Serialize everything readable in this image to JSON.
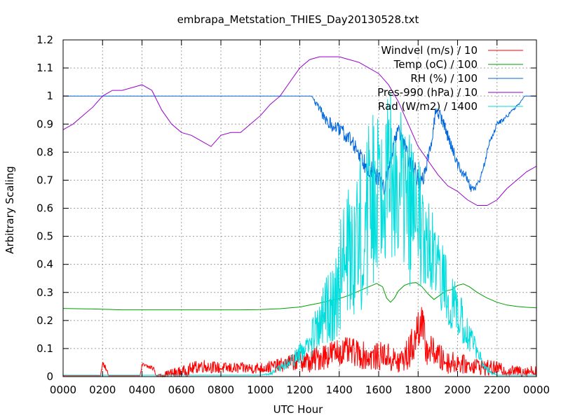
{
  "chart_data": {
    "type": "line",
    "title": "embrapa_Metstation_THIES_Day20130528.txt",
    "xlabel": "UTC Hour",
    "ylabel": "Arbitrary Scaling",
    "xlim": [
      0,
      24
    ],
    "ylim": [
      0,
      1.2
    ],
    "x_tick_values": [
      0,
      2,
      4,
      6,
      8,
      10,
      12,
      14,
      16,
      18,
      20,
      22,
      24
    ],
    "x_tick_labels": [
      "0000",
      "0200",
      "0400",
      "0600",
      "0800",
      "1000",
      "1200",
      "1400",
      "1600",
      "1800",
      "2000",
      "2200",
      "0000"
    ],
    "y_tick_values": [
      0,
      0.1,
      0.2,
      0.3,
      0.4,
      0.5,
      0.6,
      0.7,
      0.8,
      0.9,
      1,
      1.1,
      1.2
    ],
    "y_tick_labels": [
      "0",
      "0.1",
      "0.2",
      "0.3",
      "0.4",
      "0.5",
      "0.6",
      "0.7",
      "0.8",
      "0.9",
      "1",
      "1.1",
      "1.2"
    ],
    "grid": true,
    "legend_position": "top-right",
    "series": [
      {
        "name": "Windvel (m/s) / 10",
        "color": "#ff0000",
        "noisy": true,
        "x": [
          0,
          1.9,
          2.0,
          2.2,
          2.3,
          3.9,
          4.0,
          4.6,
          4.7,
          5.5,
          6.2,
          7.0,
          8.0,
          9.0,
          10.0,
          11.0,
          11.5,
          12.0,
          12.5,
          13.0,
          13.5,
          14.0,
          14.5,
          15.0,
          15.5,
          16.0,
          16.3,
          16.7,
          17.0,
          17.5,
          17.9,
          18.1,
          18.4,
          18.8,
          19.2,
          19.6,
          20.0,
          20.5,
          21.0,
          21.5,
          22.0,
          22.5,
          23.0,
          23.5,
          24.0
        ],
        "y": [
          0.003,
          0.003,
          0.05,
          0.03,
          0.003,
          0.003,
          0.04,
          0.03,
          0.003,
          0.01,
          0.02,
          0.04,
          0.03,
          0.03,
          0.03,
          0.04,
          0.05,
          0.06,
          0.05,
          0.07,
          0.08,
          0.09,
          0.09,
          0.08,
          0.07,
          0.07,
          0.08,
          0.06,
          0.05,
          0.08,
          0.14,
          0.22,
          0.1,
          0.09,
          0.06,
          0.05,
          0.05,
          0.04,
          0.04,
          0.03,
          0.03,
          0.02,
          0.02,
          0.02,
          0.02
        ],
        "amp": [
          0,
          0,
          0.01,
          0.01,
          0,
          0,
          0.01,
          0.01,
          0,
          0.02,
          0.02,
          0.025,
          0.02,
          0.02,
          0.02,
          0.025,
          0.03,
          0.04,
          0.04,
          0.05,
          0.05,
          0.05,
          0.05,
          0.05,
          0.05,
          0.05,
          0.05,
          0.05,
          0.05,
          0.06,
          0.08,
          0.1,
          0.06,
          0.05,
          0.05,
          0.04,
          0.04,
          0.03,
          0.03,
          0.03,
          0.025,
          0.02,
          0.02,
          0.02,
          0.02
        ]
      },
      {
        "name": "Temp (oC) / 100",
        "color": "#00a000",
        "noisy": false,
        "x": [
          0,
          1.5,
          3.0,
          6.0,
          9.0,
          10.0,
          11.0,
          12.0,
          12.5,
          13.0,
          13.5,
          14.0,
          14.5,
          15.0,
          15.5,
          15.9,
          16.2,
          16.4,
          16.6,
          16.8,
          17.0,
          17.3,
          17.6,
          17.9,
          18.2,
          18.5,
          18.8,
          19.1,
          19.4,
          19.7,
          20.0,
          20.3,
          20.6,
          21.0,
          21.5,
          22.0,
          22.5,
          23.0,
          23.5,
          24.0
        ],
        "y": [
          0.243,
          0.241,
          0.238,
          0.238,
          0.238,
          0.239,
          0.242,
          0.248,
          0.255,
          0.262,
          0.27,
          0.278,
          0.29,
          0.305,
          0.32,
          0.332,
          0.32,
          0.28,
          0.265,
          0.28,
          0.305,
          0.325,
          0.333,
          0.335,
          0.32,
          0.295,
          0.275,
          0.29,
          0.305,
          0.31,
          0.325,
          0.33,
          0.32,
          0.3,
          0.28,
          0.265,
          0.255,
          0.25,
          0.247,
          0.245
        ]
      },
      {
        "name": "RH (%) / 100",
        "color": "#0066dd",
        "noisy": true,
        "x": [
          0,
          12.0,
          12.6,
          13.0,
          13.5,
          14.0,
          14.5,
          15.0,
          15.3,
          15.6,
          16.0,
          16.3,
          16.5,
          16.8,
          17.0,
          17.3,
          17.6,
          17.9,
          18.1,
          18.3,
          18.6,
          18.9,
          19.2,
          19.5,
          19.8,
          20.1,
          20.4,
          20.7,
          21.0,
          21.3,
          21.6,
          22.0,
          22.4,
          22.8,
          23.1,
          23.4,
          24.0
        ],
        "y": [
          1.0,
          1.0,
          1.0,
          0.95,
          0.9,
          0.88,
          0.85,
          0.8,
          0.76,
          0.74,
          0.7,
          0.68,
          0.73,
          0.84,
          0.88,
          0.83,
          0.76,
          0.72,
          0.68,
          0.72,
          0.8,
          0.95,
          0.92,
          0.86,
          0.8,
          0.74,
          0.72,
          0.67,
          0.68,
          0.74,
          0.83,
          0.9,
          0.92,
          0.95,
          0.97,
          1.0,
          1.0
        ],
        "amp": [
          0,
          0,
          0,
          0.02,
          0.025,
          0.025,
          0.03,
          0.03,
          0.035,
          0.035,
          0.035,
          0.035,
          0.03,
          0.025,
          0.02,
          0.03,
          0.035,
          0.04,
          0.04,
          0.03,
          0.025,
          0.02,
          0.025,
          0.025,
          0.02,
          0.02,
          0.015,
          0.015,
          0.015,
          0.01,
          0.01,
          0.01,
          0.008,
          0.005,
          0.003,
          0,
          0
        ]
      },
      {
        "name": "Pres-990 (hPa) / 10",
        "color": "#9900cc",
        "noisy": false,
        "x": [
          0,
          0.5,
          1.0,
          1.5,
          2.0,
          2.5,
          3.0,
          3.5,
          4.0,
          4.5,
          5.0,
          5.5,
          6.0,
          6.5,
          7.0,
          7.5,
          8.0,
          8.5,
          9.0,
          9.5,
          10.0,
          10.5,
          11.0,
          11.5,
          12.0,
          12.5,
          13.0,
          13.5,
          14.0,
          14.5,
          15.0,
          15.5,
          16.0,
          16.5,
          17.0,
          17.5,
          18.0,
          18.5,
          19.0,
          19.5,
          20.0,
          20.5,
          21.0,
          21.5,
          22.0,
          22.5,
          23.0,
          23.5,
          24.0
        ],
        "y": [
          0.88,
          0.9,
          0.93,
          0.96,
          1.0,
          1.02,
          1.02,
          1.03,
          1.04,
          1.02,
          0.95,
          0.9,
          0.87,
          0.86,
          0.84,
          0.82,
          0.86,
          0.87,
          0.87,
          0.9,
          0.93,
          0.97,
          1.0,
          1.05,
          1.1,
          1.13,
          1.14,
          1.14,
          1.14,
          1.13,
          1.12,
          1.1,
          1.08,
          1.04,
          0.98,
          0.9,
          0.82,
          0.77,
          0.72,
          0.68,
          0.66,
          0.63,
          0.61,
          0.61,
          0.63,
          0.67,
          0.7,
          0.73,
          0.75
        ]
      },
      {
        "name": "Rad (W/m2) / 1400",
        "color": "#00dddd",
        "noisy": true,
        "x": [
          0,
          10.0,
          10.5,
          11.0,
          11.5,
          12.0,
          12.5,
          13.0,
          13.5,
          14.0,
          14.5,
          15.0,
          15.3,
          15.6,
          16.0,
          16.3,
          16.6,
          17.0,
          17.3,
          17.6,
          18.0,
          18.3,
          18.6,
          19.0,
          19.4,
          19.8,
          20.2,
          20.6,
          21.0,
          21.3,
          21.6,
          22.0,
          24.0
        ],
        "y": [
          0.005,
          0.005,
          0.01,
          0.03,
          0.05,
          0.08,
          0.12,
          0.18,
          0.25,
          0.35,
          0.45,
          0.5,
          0.55,
          0.62,
          0.7,
          0.72,
          0.72,
          0.7,
          0.65,
          0.6,
          0.55,
          0.48,
          0.42,
          0.38,
          0.32,
          0.25,
          0.2,
          0.15,
          0.08,
          0.04,
          0.02,
          0.005,
          0.005
        ],
        "amp": [
          0,
          0,
          0.005,
          0.015,
          0.025,
          0.04,
          0.06,
          0.1,
          0.15,
          0.2,
          0.25,
          0.28,
          0.3,
          0.32,
          0.32,
          0.3,
          0.3,
          0.3,
          0.28,
          0.28,
          0.25,
          0.22,
          0.2,
          0.15,
          0.12,
          0.1,
          0.08,
          0.06,
          0.04,
          0.02,
          0.01,
          0,
          0
        ]
      }
    ]
  }
}
